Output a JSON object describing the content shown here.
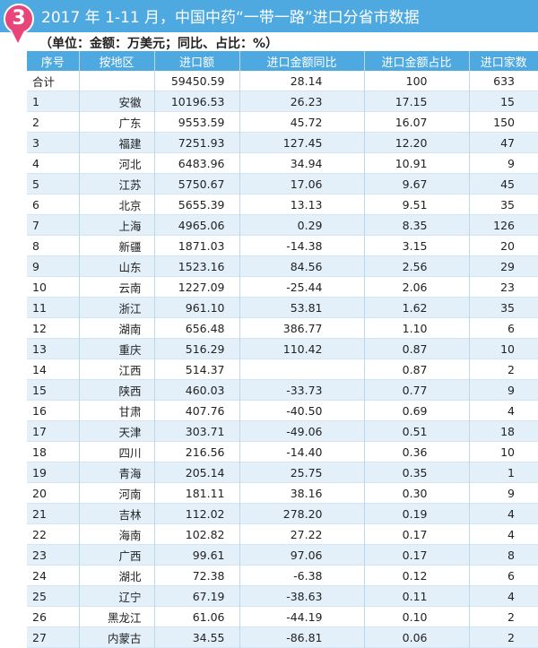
{
  "header": {
    "badge_number": "3",
    "title": "2017 年 1-11 月，中国中药“一带一路”进口分省市数据",
    "subtitle": "（单位：金额：万美元；同比、占比：%）"
  },
  "colors": {
    "header_blue": "#4ea9e0",
    "badge_pink": "#e8457a",
    "row_stripe": "#e3f0fa"
  },
  "table": {
    "columns": [
      "序号",
      "按地区",
      "进口额",
      "进口金额同比",
      "进口金额占比",
      "进口家数"
    ],
    "rows": [
      [
        "合计",
        "",
        "59450.59",
        "28.14",
        "100",
        "633"
      ],
      [
        "1",
        "安徽",
        "10196.53",
        "26.23",
        "17.15",
        "15"
      ],
      [
        "2",
        "广东",
        "9553.59",
        "45.72",
        "16.07",
        "150"
      ],
      [
        "3",
        "福建",
        "7251.93",
        "127.45",
        "12.20",
        "47"
      ],
      [
        "4",
        "河北",
        "6483.96",
        "34.94",
        "10.91",
        "9"
      ],
      [
        "5",
        "江苏",
        "5750.67",
        "17.06",
        "9.67",
        "45"
      ],
      [
        "6",
        "北京",
        "5655.39",
        "13.13",
        "9.51",
        "35"
      ],
      [
        "7",
        "上海",
        "4965.06",
        "0.29",
        "8.35",
        "126"
      ],
      [
        "8",
        "新疆",
        "1871.03",
        "-14.38",
        "3.15",
        "20"
      ],
      [
        "9",
        "山东",
        "1523.16",
        "84.56",
        "2.56",
        "29"
      ],
      [
        "10",
        "云南",
        "1227.09",
        "-25.44",
        "2.06",
        "23"
      ],
      [
        "11",
        "浙江",
        "961.10",
        "53.81",
        "1.62",
        "35"
      ],
      [
        "12",
        "湖南",
        "656.48",
        "386.77",
        "1.10",
        "6"
      ],
      [
        "13",
        "重庆",
        "516.29",
        "110.42",
        "0.87",
        "10"
      ],
      [
        "14",
        "江西",
        "514.37",
        "",
        "0.87",
        "2"
      ],
      [
        "15",
        "陕西",
        "460.03",
        "-33.73",
        "0.77",
        "9"
      ],
      [
        "16",
        "甘肃",
        "407.76",
        "-40.50",
        "0.69",
        "4"
      ],
      [
        "17",
        "天津",
        "303.71",
        "-49.06",
        "0.51",
        "18"
      ],
      [
        "18",
        "四川",
        "216.56",
        "-14.40",
        "0.36",
        "10"
      ],
      [
        "19",
        "青海",
        "205.14",
        "25.75",
        "0.35",
        "1"
      ],
      [
        "20",
        "河南",
        "181.11",
        "38.16",
        "0.30",
        "9"
      ],
      [
        "21",
        "吉林",
        "112.02",
        "278.20",
        "0.19",
        "4"
      ],
      [
        "22",
        "海南",
        "102.82",
        "27.22",
        "0.17",
        "4"
      ],
      [
        "23",
        "广西",
        "99.61",
        "97.06",
        "0.17",
        "8"
      ],
      [
        "24",
        "湖北",
        "72.38",
        "-6.38",
        "0.12",
        "6"
      ],
      [
        "25",
        "辽宁",
        "67.19",
        "-38.63",
        "0.11",
        "4"
      ],
      [
        "26",
        "黑龙江",
        "61.06",
        "-44.19",
        "0.10",
        "2"
      ],
      [
        "27",
        "内蒙古",
        "34.55",
        "-86.81",
        "0.06",
        "2"
      ]
    ]
  }
}
